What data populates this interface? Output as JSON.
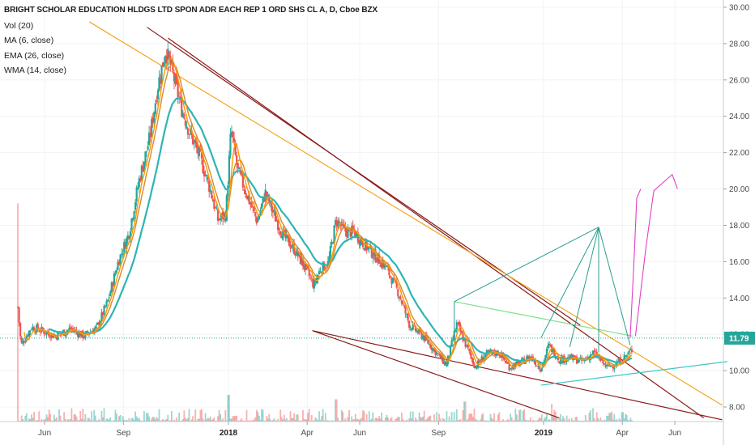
{
  "legend": {
    "title": "BRIGHT SCHOLAR EDUCATION HLDGS LTD SPON ADR EACH REP 1 ORD SHS CL A, D, Cboe BZX",
    "items": [
      "Vol (20)",
      "MA (6, close)",
      "EMA (26, close)",
      "WMA (14, close)"
    ]
  },
  "colors": {
    "up": "#26a69a",
    "down": "#ef5350",
    "ma": "#ff9800",
    "ema": "#2cb5b5",
    "wma": "#d88a2a",
    "trend_dark": "#8b1a1a",
    "trend_orange": "#f5a623",
    "trend_green": "#7ee08a",
    "trend_teal": "#2a9d8f",
    "trend_cyan": "#3cc7c7",
    "projection": "#e040c8",
    "price_line": "#26a69a"
  },
  "chart_data": {
    "type": "candlestick",
    "interval": "D",
    "exchange": "Cboe BZX",
    "last_price": "11.79",
    "y_ticks": [
      "8.00",
      "10.00",
      "12.00",
      "14.00",
      "16.00",
      "18.00",
      "20.00",
      "22.00",
      "24.00",
      "26.00",
      "28.00",
      "30.00"
    ],
    "ylim": [
      7.2,
      30.4
    ],
    "x_ticks": [
      "Jun",
      "Sep",
      "2018",
      "Apr",
      "Jun",
      "Sep",
      "2019",
      "Apr",
      "Jun"
    ],
    "x_tick_months": [
      1.0,
      4.0,
      8.0,
      11.0,
      13.0,
      16.0,
      20.0,
      23.0,
      25.0
    ],
    "bold_ticks": [
      "2018",
      "2019"
    ],
    "xlim_months": [
      -0.7,
      26.85
    ],
    "months_origin": "2017-05",
    "price_path": [
      [
        -0.02,
        13.5
      ],
      [
        0.1,
        11.4
      ],
      [
        0.5,
        12.4
      ],
      [
        0.9,
        12.2
      ],
      [
        1.4,
        11.9
      ],
      [
        2.0,
        12.3
      ],
      [
        2.5,
        11.9
      ],
      [
        3.0,
        12.4
      ],
      [
        3.4,
        13.8
      ],
      [
        3.8,
        16.0
      ],
      [
        4.2,
        17.5
      ],
      [
        4.6,
        20.5
      ],
      [
        5.0,
        22.8
      ],
      [
        5.3,
        25.6
      ],
      [
        5.6,
        27.6
      ],
      [
        5.8,
        26.8
      ],
      [
        6.2,
        24.5
      ],
      [
        6.5,
        23.2
      ],
      [
        6.9,
        21.8
      ],
      [
        7.3,
        20.0
      ],
      [
        7.6,
        18.3
      ],
      [
        7.9,
        18.6
      ],
      [
        8.1,
        23.3
      ],
      [
        8.35,
        21.0
      ],
      [
        8.7,
        19.7
      ],
      [
        9.1,
        18.2
      ],
      [
        9.4,
        19.8
      ],
      [
        9.7,
        18.7
      ],
      [
        10.1,
        17.4
      ],
      [
        10.5,
        16.7
      ],
      [
        10.9,
        15.7
      ],
      [
        11.25,
        14.7
      ],
      [
        11.5,
        15.6
      ],
      [
        11.8,
        15.9
      ],
      [
        12.1,
        18.3
      ],
      [
        12.4,
        17.7
      ],
      [
        12.8,
        17.6
      ],
      [
        13.2,
        16.9
      ],
      [
        13.6,
        16.3
      ],
      [
        14.0,
        15.7
      ],
      [
        14.5,
        14.2
      ],
      [
        14.9,
        12.5
      ],
      [
        15.4,
        11.9
      ],
      [
        15.8,
        11.2
      ],
      [
        16.3,
        10.3
      ],
      [
        16.7,
        12.6
      ],
      [
        17.1,
        11.2
      ],
      [
        17.4,
        10.2
      ],
      [
        17.8,
        10.9
      ],
      [
        18.3,
        11.0
      ],
      [
        18.7,
        10.2
      ],
      [
        19.1,
        10.4
      ],
      [
        19.5,
        10.8
      ],
      [
        19.9,
        10.1
      ],
      [
        20.2,
        11.4
      ],
      [
        20.6,
        10.6
      ],
      [
        21.0,
        10.7
      ],
      [
        21.5,
        10.5
      ],
      [
        21.9,
        11.0
      ],
      [
        22.4,
        10.2
      ],
      [
        22.8,
        10.4
      ],
      [
        23.2,
        10.9
      ],
      [
        23.4,
        11.2
      ]
    ],
    "volume_spikes": [
      [
        -0.03,
        3.5
      ],
      [
        8.0,
        0.6
      ],
      [
        12.1,
        0.5
      ],
      [
        17.0,
        0.45
      ],
      [
        20.3,
        0.4
      ],
      [
        21.9,
        0.3
      ]
    ]
  },
  "drawings": {
    "trendlines": [
      {
        "style": "dark",
        "p1": [
          5.7,
          28.3
        ],
        "p2": [
          26.1,
          7.4
        ]
      },
      {
        "style": "dark",
        "p1": [
          4.9,
          28.9
        ],
        "p2": [
          21.4,
          12.5
        ]
      },
      {
        "style": "dark",
        "p1": [
          11.2,
          12.2
        ],
        "p2": [
          26.8,
          7.3
        ]
      },
      {
        "style": "dark",
        "p1": [
          11.2,
          12.2
        ],
        "p2": [
          20.6,
          7.4
        ]
      },
      {
        "style": "orange",
        "p1": [
          2.7,
          29.2
        ],
        "p2": [
          26.8,
          8.1
        ]
      },
      {
        "style": "green",
        "p1": [
          16.6,
          13.8
        ],
        "p2": [
          23.4,
          11.9
        ]
      },
      {
        "style": "cyan",
        "p1": [
          19.9,
          9.2
        ],
        "p2": [
          27.0,
          10.5
        ]
      }
    ],
    "fan_apex": [
      22.1,
      17.9
    ],
    "fan_points": [
      [
        16.6,
        13.8
      ],
      [
        19.9,
        11.8
      ],
      [
        21.0,
        11.3
      ],
      [
        22.1,
        11.0
      ],
      [
        23.3,
        11.4
      ]
    ],
    "projections": [
      [
        [
          23.3,
          11.8
        ],
        [
          23.45,
          16.2
        ],
        [
          23.55,
          19.5
        ],
        [
          23.7,
          20.0
        ]
      ],
      [
        [
          23.5,
          11.9
        ],
        [
          23.9,
          16.8
        ],
        [
          24.2,
          19.9
        ],
        [
          24.9,
          20.8
        ],
        [
          25.1,
          20.0
        ]
      ]
    ]
  }
}
